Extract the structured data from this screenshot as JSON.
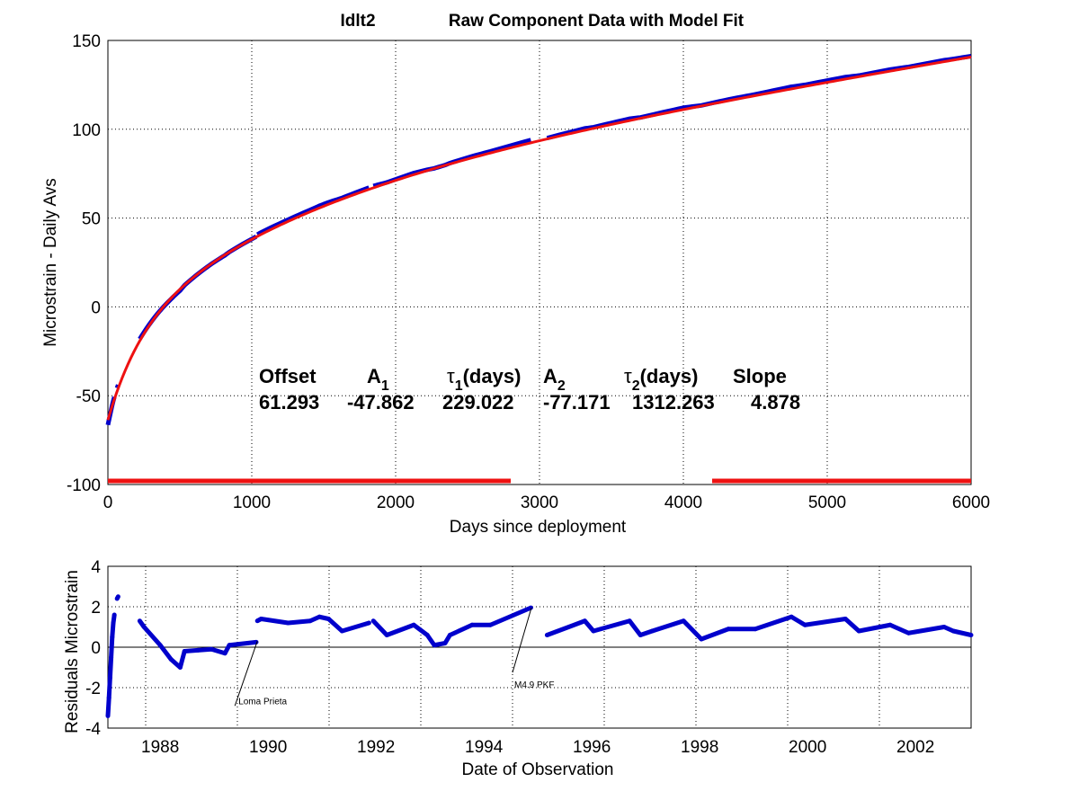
{
  "chart_data": [
    {
      "type": "line",
      "title_station": "Idlt2",
      "title": "Raw Component Data with Model Fit",
      "xlabel": "Days since deployment",
      "ylabel": "Microstrain - Daily Avs",
      "xlim": [
        0,
        6000
      ],
      "ylim": [
        -100,
        150
      ],
      "xticks": [
        0,
        1000,
        2000,
        3000,
        4000,
        5000,
        6000
      ],
      "yticks": [
        -100,
        -50,
        0,
        50,
        100,
        150
      ],
      "grid": true,
      "model": {
        "headers": [
          "Offset",
          "A",
          "τ",
          "(days)",
          "A",
          "τ",
          "(days)",
          "Slope"
        ],
        "header_labels": {
          "offset": "Offset",
          "a1": "A",
          "a1_sub": "1",
          "tau1": "τ",
          "tau1_sub": "1",
          "tau1_unit": "(days)",
          "a2": "A",
          "a2_sub": "2",
          "tau2": "τ",
          "tau2_sub": "2",
          "tau2_unit": "(days)",
          "slope": "Slope"
        },
        "values": {
          "offset": "61.293",
          "a1": "-47.862",
          "tau1": "229.022",
          "a2": "-77.171",
          "tau2": "1312.263",
          "slope": "4.878"
        }
      },
      "series": [
        {
          "role": "data",
          "color": "#0000cc"
        },
        {
          "role": "model fit",
          "color": "#ee1111"
        }
      ],
      "red_bars": {
        "y": -98,
        "segments": [
          [
            0,
            2800
          ],
          [
            4200,
            6000
          ]
        ],
        "color": "#ee1111"
      }
    },
    {
      "type": "scatter",
      "xlabel": "Date of Observation",
      "ylabel": "Residuals Microstrain",
      "xlim": [
        1987.03,
        2003.03
      ],
      "ylim": [
        -4,
        4
      ],
      "xticks": [
        1988,
        1990,
        1992,
        1994,
        1996,
        1998,
        2000,
        2002
      ],
      "yticks": [
        -4,
        -2,
        0,
        2,
        4
      ],
      "grid": true,
      "color": "#0000cc",
      "segments": [
        [
          [
            1987.03,
            -3.4
          ],
          [
            1987.05,
            -2.5
          ],
          [
            1987.07,
            -1.5
          ],
          [
            1987.09,
            -0.5
          ],
          [
            1987.11,
            0.5
          ],
          [
            1987.13,
            1.2
          ],
          [
            1987.15,
            1.6
          ]
        ],
        [
          [
            1987.2,
            2.4
          ],
          [
            1987.22,
            2.5
          ]
        ],
        [
          [
            1987.62,
            1.3
          ],
          [
            1987.7,
            1.0
          ],
          [
            1988.0,
            0.1
          ],
          [
            1988.2,
            -0.6
          ],
          [
            1988.37,
            -1.0
          ],
          [
            1988.45,
            -0.2
          ],
          [
            1988.7,
            -0.15
          ],
          [
            1988.95,
            -0.1
          ],
          [
            1989.2,
            -0.3
          ],
          [
            1989.28,
            0.1
          ],
          [
            1989.78,
            0.25
          ]
        ],
        [
          [
            1989.8,
            1.3
          ],
          [
            1989.87,
            1.4
          ],
          [
            1990.37,
            1.2
          ],
          [
            1990.78,
            1.3
          ],
          [
            1990.95,
            1.5
          ],
          [
            1991.12,
            1.4
          ],
          [
            1991.37,
            0.8
          ],
          [
            1991.87,
            1.2
          ]
        ],
        [
          [
            1991.95,
            1.3
          ],
          [
            1992.2,
            0.6
          ],
          [
            1992.7,
            1.1
          ],
          [
            1992.95,
            0.6
          ],
          [
            1993.08,
            0.1
          ],
          [
            1993.28,
            0.2
          ],
          [
            1993.37,
            0.6
          ],
          [
            1993.78,
            1.1
          ],
          [
            1994.12,
            1.1
          ],
          [
            1994.87,
            1.95
          ]
        ],
        [
          [
            1995.17,
            0.6
          ],
          [
            1995.87,
            1.3
          ],
          [
            1996.03,
            0.8
          ],
          [
            1996.7,
            1.3
          ],
          [
            1996.9,
            0.6
          ],
          [
            1997.12,
            0.8
          ],
          [
            1997.7,
            1.3
          ],
          [
            1998.03,
            0.4
          ],
          [
            1998.53,
            0.9
          ],
          [
            1999.03,
            0.9
          ],
          [
            1999.7,
            1.5
          ],
          [
            1999.95,
            1.1
          ],
          [
            2000.7,
            1.4
          ],
          [
            2000.95,
            0.8
          ],
          [
            2001.53,
            1.1
          ],
          [
            2001.87,
            0.7
          ],
          [
            2002.53,
            1.0
          ],
          [
            2002.7,
            0.8
          ],
          [
            2003.03,
            0.6
          ]
        ]
      ],
      "annotations": [
        {
          "text": "Loma Prieta",
          "x": 1989.8,
          "y": 0.3
        },
        {
          "text": "M4.9 PKF",
          "x": 1994.88,
          "y": 1.95
        }
      ]
    }
  ]
}
